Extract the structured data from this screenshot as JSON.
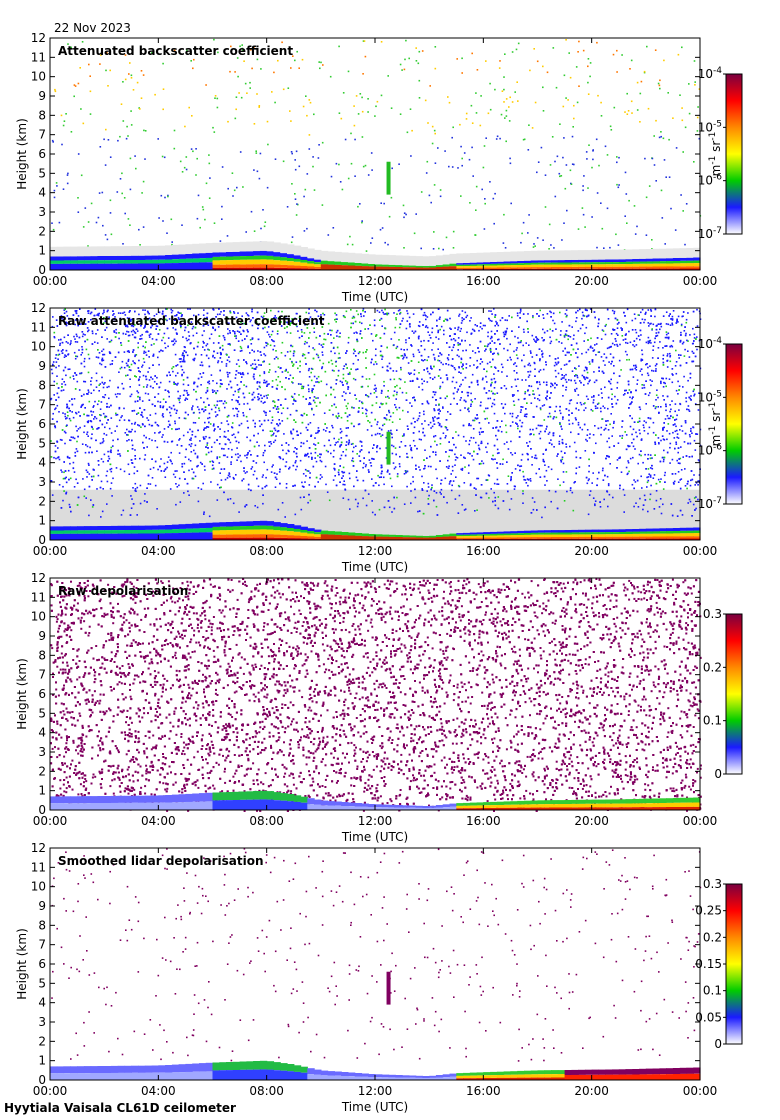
{
  "header": {
    "date": "22 Nov 2023"
  },
  "footer": {
    "instrument": "Hyytiala Vaisala CL61D ceilometer"
  },
  "colors": {
    "colormap": [
      "#ffffff",
      "#1a1aff",
      "#00cc00",
      "#ffff00",
      "#ff8800",
      "#ff0000",
      "#7a0040"
    ],
    "background_grey": "#dcdcdc",
    "noise_purple": "#800060"
  },
  "chart_data": [
    {
      "type": "heatmap",
      "title": "Attenuated backscatter coefficient",
      "xlabel": "Time (UTC)",
      "ylabel": "Height (km)",
      "x_ticks": [
        "00:00",
        "04:00",
        "08:00",
        "12:00",
        "16:00",
        "20:00",
        "00:00"
      ],
      "y_ticks": [
        "0",
        "1",
        "2",
        "3",
        "4",
        "5",
        "6",
        "7",
        "8",
        "9",
        "10",
        "11",
        "12"
      ],
      "ylim": [
        0,
        12
      ],
      "xlim_hours": [
        0,
        24
      ],
      "colorbar": {
        "scale": "log",
        "range": [
          1e-07,
          0.0001
        ],
        "ticks": [
          {
            "base": "10",
            "exp": "-4"
          },
          {
            "base": "10",
            "exp": "-5"
          },
          {
            "base": "10",
            "exp": "-6"
          },
          {
            "base": "10",
            "exp": "-7"
          }
        ],
        "unit_parts": [
          "m",
          "-1",
          " sr",
          "-1"
        ]
      },
      "boundary_layer_top_km": [
        [
          0,
          0.7
        ],
        [
          4,
          0.75
        ],
        [
          6,
          0.9
        ],
        [
          8,
          1.0
        ],
        [
          9,
          0.8
        ],
        [
          10,
          0.5
        ],
        [
          12,
          0.3
        ],
        [
          14,
          0.2
        ],
        [
          15,
          0.35
        ],
        [
          18,
          0.5
        ],
        [
          21,
          0.55
        ],
        [
          24,
          0.65
        ]
      ],
      "cloud_feature": {
        "start_hour": 12.5,
        "height_km": [
          3.9,
          5.6
        ]
      }
    },
    {
      "type": "heatmap",
      "title": "Raw attenuated backscatter coefficient",
      "xlabel": "Time (UTC)",
      "ylabel": "Height (km)",
      "x_ticks": [
        "00:00",
        "04:00",
        "08:00",
        "12:00",
        "16:00",
        "20:00",
        "00:00"
      ],
      "y_ticks": [
        "0",
        "1",
        "2",
        "3",
        "4",
        "5",
        "6",
        "7",
        "8",
        "9",
        "10",
        "11",
        "12"
      ],
      "ylim": [
        0,
        12
      ],
      "xlim_hours": [
        0,
        24
      ],
      "colorbar": {
        "scale": "log",
        "range": [
          1e-07,
          0.0001
        ],
        "ticks": [
          {
            "base": "10",
            "exp": "-4"
          },
          {
            "base": "10",
            "exp": "-5"
          },
          {
            "base": "10",
            "exp": "-6"
          },
          {
            "base": "10",
            "exp": "-7"
          }
        ],
        "unit_parts": [
          "m",
          "-1",
          " sr",
          "-1"
        ]
      },
      "boundary_layer_top_km": [
        [
          0,
          0.7
        ],
        [
          4,
          0.75
        ],
        [
          6,
          0.9
        ],
        [
          8,
          1.0
        ],
        [
          9,
          0.8
        ],
        [
          10,
          0.5
        ],
        [
          12,
          0.3
        ],
        [
          14,
          0.2
        ],
        [
          15,
          0.35
        ],
        [
          18,
          0.5
        ],
        [
          21,
          0.55
        ],
        [
          24,
          0.65
        ]
      ],
      "cloud_feature": {
        "start_hour": 12.5,
        "height_km": [
          3.9,
          5.6
        ]
      }
    },
    {
      "type": "heatmap",
      "title": "Raw depolarisation",
      "xlabel": "Time (UTC)",
      "ylabel": "Height (km)",
      "x_ticks": [
        "00:00",
        "04:00",
        "08:00",
        "12:00",
        "16:00",
        "20:00",
        "00:00"
      ],
      "y_ticks": [
        "0",
        "1",
        "2",
        "3",
        "4",
        "5",
        "6",
        "7",
        "8",
        "9",
        "10",
        "11",
        "12"
      ],
      "ylim": [
        0,
        12
      ],
      "xlim_hours": [
        0,
        24
      ],
      "colorbar": {
        "scale": "linear",
        "range": [
          0,
          0.3
        ],
        "ticks": [
          "0.3",
          "0.2",
          "0.1",
          "0"
        ]
      },
      "boundary_layer_top_km": [
        [
          0,
          0.7
        ],
        [
          4,
          0.75
        ],
        [
          6,
          0.9
        ],
        [
          8,
          1.0
        ],
        [
          9,
          0.8
        ],
        [
          10,
          0.5
        ],
        [
          12,
          0.3
        ],
        [
          14,
          0.2
        ],
        [
          15,
          0.35
        ],
        [
          18,
          0.5
        ],
        [
          21,
          0.55
        ],
        [
          24,
          0.65
        ]
      ]
    },
    {
      "type": "heatmap",
      "title": "Smoothed lidar depolarisation",
      "xlabel": "Time (UTC)",
      "ylabel": "Height (km)",
      "x_ticks": [
        "00:00",
        "04:00",
        "08:00",
        "12:00",
        "16:00",
        "20:00",
        "00:00"
      ],
      "y_ticks": [
        "0",
        "1",
        "2",
        "3",
        "4",
        "5",
        "6",
        "7",
        "8",
        "9",
        "10",
        "11",
        "12"
      ],
      "ylim": [
        0,
        12
      ],
      "xlim_hours": [
        0,
        24
      ],
      "colorbar": {
        "scale": "linear",
        "range": [
          0,
          0.3
        ],
        "ticks": [
          "0.3",
          "0.25",
          "0.2",
          "0.15",
          "0.1",
          "0.05",
          "0"
        ]
      },
      "boundary_layer_top_km": [
        [
          0,
          0.7
        ],
        [
          4,
          0.75
        ],
        [
          6,
          0.9
        ],
        [
          8,
          1.0
        ],
        [
          9,
          0.8
        ],
        [
          10,
          0.5
        ],
        [
          12,
          0.3
        ],
        [
          14,
          0.2
        ],
        [
          15,
          0.35
        ],
        [
          18,
          0.5
        ],
        [
          21,
          0.55
        ],
        [
          24,
          0.65
        ]
      ],
      "cloud_feature": {
        "start_hour": 12.5,
        "height_km": [
          3.9,
          5.6
        ]
      }
    }
  ]
}
